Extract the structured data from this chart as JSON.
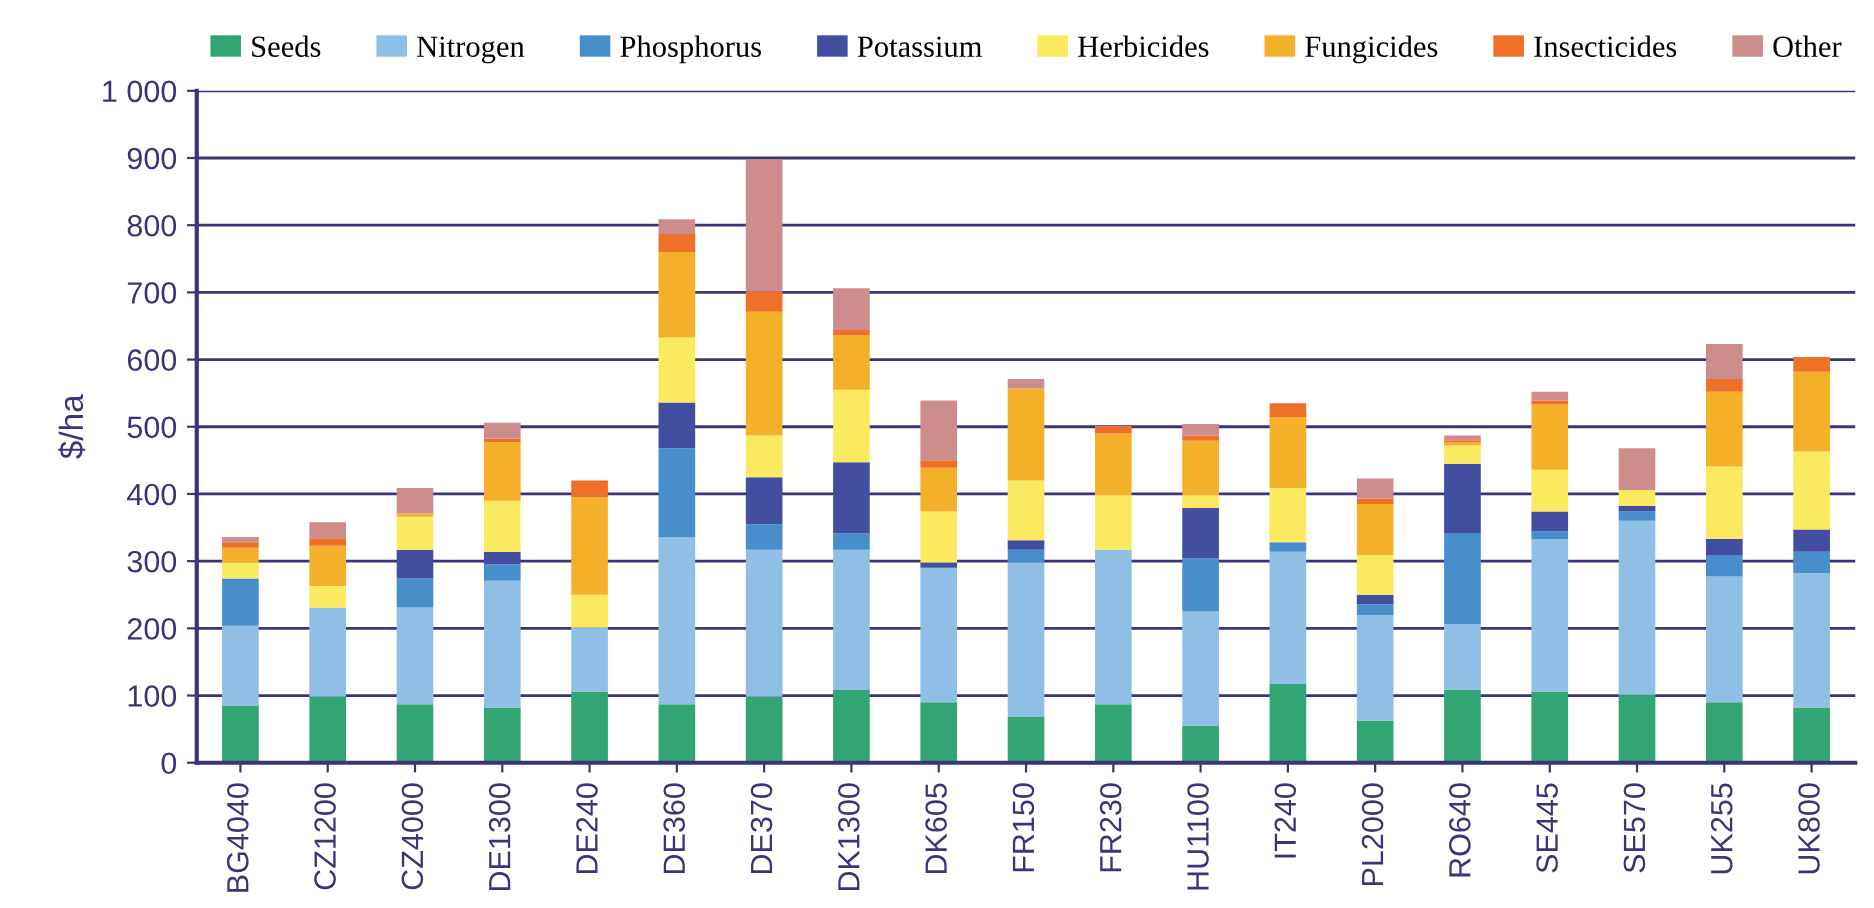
{
  "chart_data": {
    "type": "bar",
    "stacked": true,
    "ylabel": "$/ha",
    "categories": [
      "BG4040",
      "CZ1200",
      "CZ4000",
      "DE1300",
      "DE240",
      "DE360",
      "DE370",
      "DK1300",
      "DK605",
      "FR150",
      "FR230",
      "HU1100",
      "IT240",
      "PL2000",
      "RO640",
      "SE445",
      "SE570",
      "UK255",
      "UK800"
    ],
    "series": [
      {
        "name": "Seeds",
        "color": "#33a474",
        "values": [
          85,
          98,
          87,
          82,
          106,
          87,
          98,
          109,
          90,
          68,
          87,
          55,
          117,
          63,
          109,
          106,
          101,
          90,
          82
        ]
      },
      {
        "name": "Nitrogen",
        "color": "#90bfe6",
        "values": [
          119,
          133,
          144,
          189,
          95,
          249,
          219,
          208,
          200,
          230,
          230,
          170,
          197,
          157,
          97,
          227,
          259,
          187,
          200
        ]
      },
      {
        "name": "Phosphorus",
        "color": "#488ecb",
        "values": [
          70,
          0,
          43,
          24,
          0,
          132,
          38,
          24,
          0,
          19,
          0,
          79,
          14,
          16,
          136,
          11,
          14,
          32,
          32
        ]
      },
      {
        "name": "Potassium",
        "color": "#434ea0",
        "values": [
          0,
          0,
          43,
          19,
          0,
          68,
          70,
          106,
          8,
          14,
          0,
          75,
          0,
          14,
          103,
          30,
          8,
          24,
          33
        ]
      },
      {
        "name": "Herbicides",
        "color": "#fbe960",
        "values": [
          24,
          32,
          49,
          76,
          49,
          97,
          62,
          108,
          76,
          89,
          81,
          19,
          81,
          59,
          27,
          62,
          24,
          108,
          116
        ]
      },
      {
        "name": "Fungicides",
        "color": "#f5b02a",
        "values": [
          22,
          60,
          5,
          87,
          145,
          127,
          184,
          81,
          65,
          137,
          92,
          81,
          105,
          76,
          5,
          97,
          0,
          111,
          119
        ]
      },
      {
        "name": "Insecticides",
        "color": "#ef7128",
        "values": [
          8,
          11,
          0,
          5,
          25,
          27,
          30,
          8,
          11,
          0,
          11,
          8,
          21,
          8,
          3,
          6,
          0,
          19,
          22
        ]
      },
      {
        "name": "Other",
        "color": "#cd8d8d",
        "values": [
          8,
          24,
          38,
          24,
          0,
          22,
          197,
          62,
          89,
          14,
          0,
          17,
          0,
          30,
          7,
          13,
          62,
          52,
          0
        ]
      }
    ],
    "ylim": [
      0,
      1000
    ],
    "yticks": [
      0,
      100,
      200,
      300,
      400,
      500,
      600,
      700,
      800,
      900,
      {
        "value": 1000,
        "label": "1 000"
      }
    ],
    "grid": "y",
    "legend": "top"
  }
}
